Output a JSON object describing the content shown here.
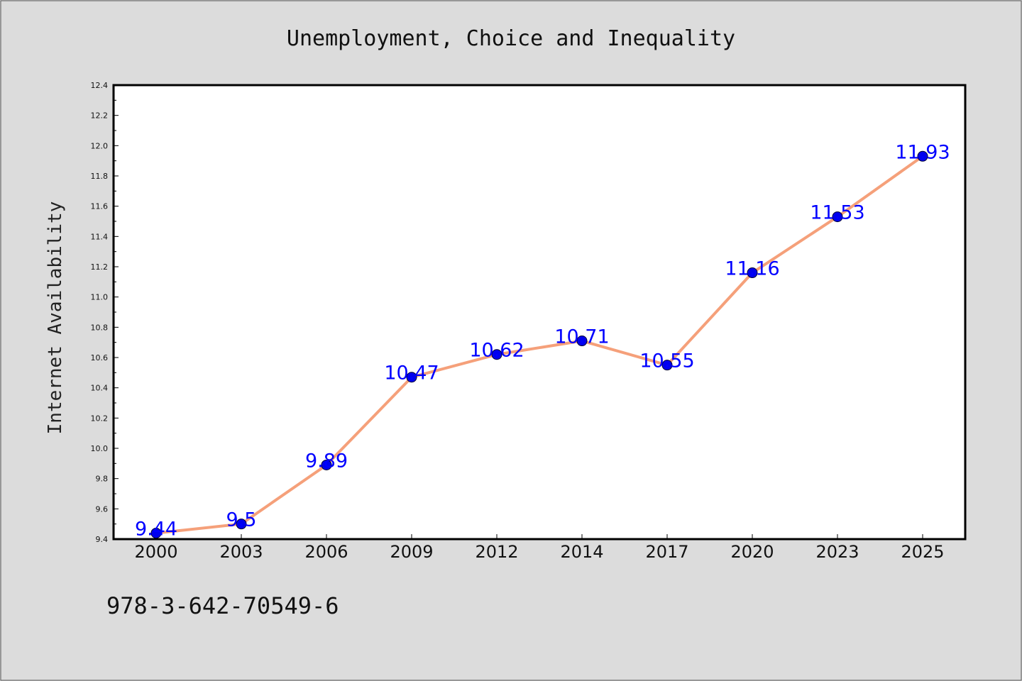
{
  "chart_data": {
    "type": "line",
    "title": "Unemployment, Choice and Inequality",
    "xlabel": "",
    "ylabel": "Internet Availability",
    "categories": [
      "2000",
      "2003",
      "2006",
      "2009",
      "2012",
      "2014",
      "2017",
      "2020",
      "2023",
      "2025"
    ],
    "series": [
      {
        "values": [
          9.44,
          9.5,
          9.89,
          10.47,
          10.62,
          10.71,
          10.55,
          11.16,
          11.53,
          11.93
        ],
        "data_labels": [
          "9.44",
          "9.5",
          "9.89",
          "10.47",
          "10.62",
          "10.71",
          "10.55",
          "11.16",
          "11.53",
          "11.93"
        ],
        "line_color": "#f5a07a",
        "marker_color": "#0000ee"
      }
    ],
    "ylim": [
      9.4,
      12.4
    ],
    "yticks": [
      "9.4",
      "9.6",
      "9.8",
      "10.0",
      "10.2",
      "10.4",
      "10.6",
      "10.8",
      "11.0",
      "11.2",
      "11.4",
      "11.6",
      "11.8",
      "12.0",
      "12.2",
      "12.4"
    ],
    "grid": false,
    "legend": "none"
  },
  "footer": {
    "isbn": "978-3-642-70549-6"
  },
  "colors": {
    "background": "#dcdcdc",
    "plot_background": "#ffffff",
    "label_color": "#0000ff"
  }
}
